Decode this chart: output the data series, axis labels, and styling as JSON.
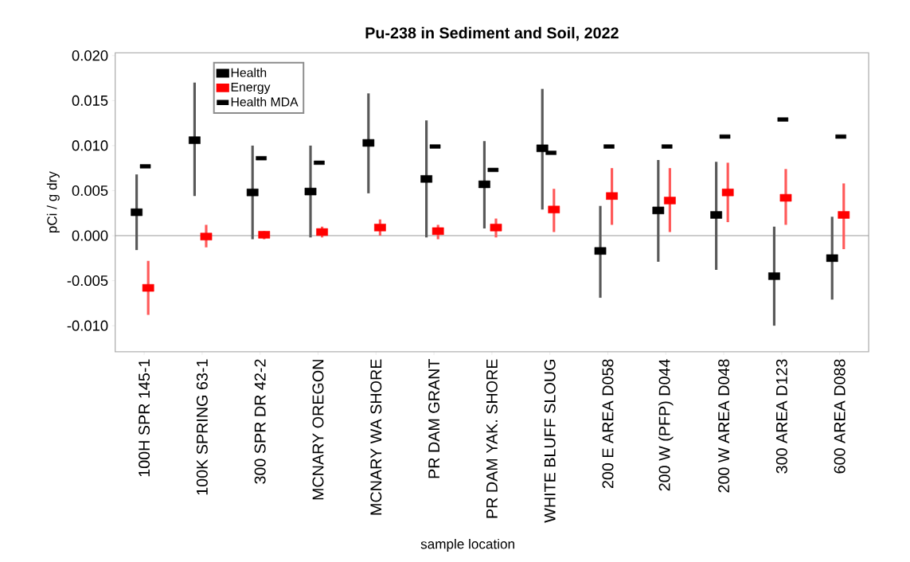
{
  "chart_data": {
    "type": "scatter",
    "title": "Pu-238 in Sediment and Soil, 2022",
    "xlabel": "sample location",
    "ylabel": "pCi / g dry",
    "categories": [
      "100H SPR 145-1",
      "100K SPRING 63-1",
      "300 SPR DR 42-2",
      "MCNARY OREGON",
      "MCNARY WA SHORE",
      "PR DAM GRANT",
      "PR DAM YAK. SHORE",
      "WHITE BLUFF SLOUG",
      "200 E AREA D058",
      "200 W (PFP) D044",
      "200 W AREA D048",
      "300 AREA D123",
      "600 AREA D088"
    ],
    "series": [
      {
        "name": "Health",
        "color": "#000000",
        "marker": "square",
        "values": [
          0.0026,
          0.0106,
          0.0048,
          0.0049,
          0.0103,
          0.0063,
          0.0057,
          0.0097,
          -0.0017,
          0.0028,
          0.0023,
          -0.0045,
          -0.0025
        ],
        "errors": [
          [
            -0.0016,
            0.0068
          ],
          [
            0.0044,
            0.017
          ],
          [
            -0.0004,
            0.01
          ],
          [
            -0.0002,
            0.01
          ],
          [
            0.0047,
            0.0158
          ],
          [
            -0.0002,
            0.0128
          ],
          [
            0.0008,
            0.0105
          ],
          [
            0.0029,
            0.0163
          ],
          [
            -0.0069,
            0.0033
          ],
          [
            -0.0029,
            0.0084
          ],
          [
            -0.0038,
            0.0082
          ],
          [
            -0.01,
            0.001
          ],
          [
            -0.0071,
            0.0021
          ]
        ]
      },
      {
        "name": "Energy",
        "color": "#ff0000",
        "marker": "square",
        "values": [
          -0.0058,
          -0.0001,
          0.0001,
          0.0004,
          0.0009,
          0.0005,
          0.0009,
          0.0029,
          0.0044,
          0.0039,
          0.0048,
          0.0042,
          0.0023
        ],
        "errors": [
          [
            -0.0088,
            -0.0028
          ],
          [
            -0.0013,
            0.0012
          ],
          [
            -0.0004,
            0.0005
          ],
          [
            -0.0002,
            0.001
          ],
          [
            0.0,
            0.0018
          ],
          [
            -0.0004,
            0.0012
          ],
          [
            -0.0002,
            0.0019
          ],
          [
            0.0004,
            0.0052
          ],
          [
            0.0012,
            0.0075
          ],
          [
            0.0004,
            0.0075
          ],
          [
            0.0015,
            0.0081
          ],
          [
            0.0012,
            0.0074
          ],
          [
            -0.0015,
            0.0058
          ]
        ]
      },
      {
        "name": "Health MDA",
        "color": "#000000",
        "values": [
          0.0077,
          null,
          0.0086,
          0.0081,
          null,
          0.0099,
          0.0073,
          0.0092,
          0.0099,
          0.0099,
          0.011,
          0.0129,
          0.011
        ]
      }
    ],
    "ylim": [
      -0.0129,
      0.0203
    ],
    "yticks": [
      {
        "value": -0.01,
        "label": "-0.010"
      },
      {
        "value": -0.005,
        "label": "-0.005"
      },
      {
        "value": 0,
        "label": "0.000"
      },
      {
        "value": 0.005,
        "label": "0.005"
      },
      {
        "value": 0.01,
        "label": "0.010"
      },
      {
        "value": 0.015,
        "label": "0.015"
      },
      {
        "value": 0.02,
        "label": "0.020"
      }
    ],
    "ref_lines": [
      {
        "axis": "y",
        "value": 0,
        "color": "#999999"
      }
    ],
    "legend": "top left"
  }
}
